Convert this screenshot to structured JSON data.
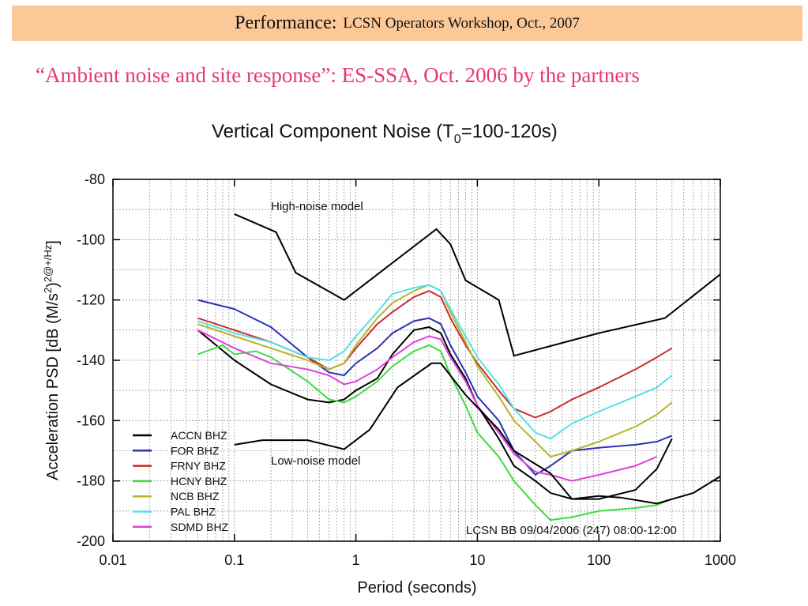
{
  "slide": {
    "title_main": "Performance:",
    "title_rest": "LCSN Operators Workshop, Oct., 2007",
    "subtitle": "“Ambient noise and site response”: ES-SSA, Oct. 2006 by the partners"
  },
  "chart_data": {
    "type": "line",
    "title": "Vertical Component Noise (T",
    "title_sub": "0",
    "title_tail": "=100-120s)",
    "xlabel": "Period (seconds)",
    "ylabel_main": "Acceleration PSD [dB (M/s",
    "ylabel_sup": "2",
    "ylabel_mid": ")",
    "ylabel_sup2": "2@+/Hz",
    "ylabel_end": "]",
    "x_scale": "log",
    "xlim": [
      0.01,
      1000
    ],
    "ylim": [
      -200,
      -80
    ],
    "xticks": [
      0.01,
      0.1,
      1,
      10,
      100,
      1000
    ],
    "xtick_labels": [
      "0.01",
      "0.1",
      "1",
      "10",
      "100",
      "1000"
    ],
    "yticks": [
      -80,
      -100,
      -120,
      -140,
      -160,
      -180,
      -200
    ],
    "ytick_labels": [
      "-80",
      "-100",
      "-120",
      "-140",
      "-160",
      "-180",
      "-200"
    ],
    "grid": true,
    "annotations": {
      "high_noise": "High-noise model",
      "low_noise": "Low-noise model",
      "stamp": "LCSN BB 09/04/2006 (247) 08:00-12:00"
    },
    "legend_position": "bottom-left",
    "models": [
      {
        "name": "High-noise model",
        "color": "#000000",
        "points": [
          [
            0.1,
            -91.5
          ],
          [
            0.22,
            -97.5
          ],
          [
            0.32,
            -111
          ],
          [
            0.8,
            -120
          ],
          [
            4.6,
            -96.5
          ],
          [
            6,
            -101.5
          ],
          [
            8,
            -113.5
          ],
          [
            15,
            -120
          ],
          [
            20,
            -138.5
          ],
          [
            100,
            -131
          ],
          [
            350,
            -126
          ],
          [
            1000,
            -111.5
          ]
        ]
      },
      {
        "name": "Low-noise model",
        "color": "#000000",
        "points": [
          [
            0.1,
            -168
          ],
          [
            0.17,
            -166.5
          ],
          [
            0.4,
            -166.5
          ],
          [
            0.8,
            -169.5
          ],
          [
            1.3,
            -163
          ],
          [
            2.2,
            -149
          ],
          [
            4.2,
            -141
          ],
          [
            5,
            -141
          ],
          [
            8,
            -151.5
          ],
          [
            15,
            -163
          ],
          [
            20,
            -170
          ],
          [
            40,
            -177.5
          ],
          [
            60,
            -186
          ],
          [
            100,
            -185
          ],
          [
            150,
            -185.5
          ],
          [
            300,
            -187.5
          ],
          [
            600,
            -184
          ],
          [
            1000,
            -178.5
          ]
        ]
      }
    ],
    "series": [
      {
        "name": "ACCN BHZ",
        "color": "#000000",
        "x": [
          0.05,
          0.1,
          0.2,
          0.4,
          0.6,
          0.8,
          1.0,
          1.5,
          2.0,
          3.0,
          4.0,
          5.0,
          6.0,
          8.0,
          10,
          15,
          20,
          30,
          40,
          60,
          100,
          200,
          300,
          400
        ],
        "y": [
          -130,
          -140,
          -148,
          -153,
          -154,
          -153,
          -150,
          -146,
          -138,
          -130,
          -129,
          -131,
          -138,
          -146,
          -155,
          -166,
          -175,
          -180,
          -184,
          -186,
          -186,
          -183,
          -176,
          -166
        ]
      },
      {
        "name": "FOR BHZ",
        "color": "#2a33b0",
        "x": [
          0.05,
          0.1,
          0.2,
          0.4,
          0.6,
          0.8,
          1.0,
          1.5,
          2.0,
          3.0,
          4.0,
          5.0,
          6.0,
          8.0,
          10,
          15,
          20,
          30,
          40,
          60,
          100,
          200,
          300,
          400
        ],
        "y": [
          -120,
          -123,
          -129,
          -139,
          -144,
          -145,
          -141,
          -136,
          -131,
          -127,
          -126,
          -128,
          -135,
          -144,
          -152,
          -160,
          -170,
          -178,
          -175,
          -170,
          -169,
          -168,
          -167,
          -165
        ]
      },
      {
        "name": "FRNY BHZ",
        "color": "#cc2b2b",
        "x": [
          0.05,
          0.1,
          0.2,
          0.4,
          0.6,
          0.8,
          1.0,
          1.5,
          2.0,
          3.0,
          4.0,
          5.0,
          6.0,
          8.0,
          10,
          15,
          20,
          30,
          40,
          60,
          100,
          200,
          300,
          400
        ],
        "y": [
          -126,
          -130,
          -134,
          -139,
          -143,
          -141,
          -136,
          -128,
          -124,
          -119,
          -117,
          -119,
          -126,
          -135,
          -141,
          -150,
          -156,
          -159,
          -157,
          -153,
          -149,
          -143,
          -139,
          -136
        ]
      },
      {
        "name": "HCNY BHZ",
        "color": "#3ddd3d",
        "x": [
          0.05,
          0.08,
          0.1,
          0.15,
          0.2,
          0.4,
          0.6,
          0.8,
          1.0,
          1.5,
          2.0,
          3.0,
          4.0,
          5.0,
          6.0,
          8.0,
          10,
          15,
          20,
          30,
          40,
          60,
          100,
          200,
          300,
          400
        ],
        "y": [
          -138,
          -135,
          -138,
          -137,
          -139,
          -147,
          -153,
          -154,
          -152,
          -147,
          -142,
          -137,
          -135,
          -137,
          -145,
          -155,
          -164,
          -172,
          -180,
          -188,
          -193,
          -192,
          -190,
          -189,
          -188,
          -186
        ]
      },
      {
        "name": "NCB BHZ",
        "color": "#b5b52a",
        "x": [
          0.05,
          0.1,
          0.2,
          0.4,
          0.6,
          0.8,
          1.0,
          1.5,
          2.0,
          3.0,
          4.0,
          5.0,
          6.0,
          8.0,
          10,
          15,
          20,
          30,
          40,
          60,
          100,
          200,
          300,
          400
        ],
        "y": [
          -128,
          -132,
          -136,
          -140,
          -143,
          -141,
          -135,
          -126,
          -121,
          -117,
          -115,
          -117,
          -124,
          -134,
          -142,
          -152,
          -160,
          -167,
          -172,
          -170,
          -167,
          -162,
          -158,
          -154
        ]
      },
      {
        "name": "PAL BHZ",
        "color": "#55e0e8",
        "x": [
          0.05,
          0.1,
          0.2,
          0.4,
          0.6,
          0.8,
          1.0,
          1.5,
          2.0,
          3.0,
          4.0,
          5.0,
          6.0,
          8.0,
          10,
          15,
          20,
          30,
          40,
          60,
          100,
          200,
          300,
          400
        ],
        "y": [
          -127,
          -131,
          -134,
          -139,
          -140,
          -137,
          -132,
          -124,
          -118,
          -116,
          -115,
          -117,
          -123,
          -132,
          -139,
          -148,
          -156,
          -164,
          -166,
          -161,
          -157,
          -152,
          -149,
          -145
        ]
      },
      {
        "name": "SDMD BHZ",
        "color": "#e040e0",
        "x": [
          0.05,
          0.1,
          0.2,
          0.4,
          0.6,
          0.8,
          1.0,
          1.5,
          2.0,
          3.0,
          4.0,
          5.0,
          6.0,
          8.0,
          10,
          15,
          20,
          30,
          40,
          60,
          100,
          200,
          300
        ],
        "y": [
          -130,
          -136,
          -141,
          -143,
          -145,
          -148,
          -147,
          -143,
          -139,
          -134,
          -132,
          -133,
          -139,
          -147,
          -155,
          -164,
          -171,
          -177,
          -178,
          -180,
          -178,
          -175,
          -172
        ]
      }
    ]
  }
}
